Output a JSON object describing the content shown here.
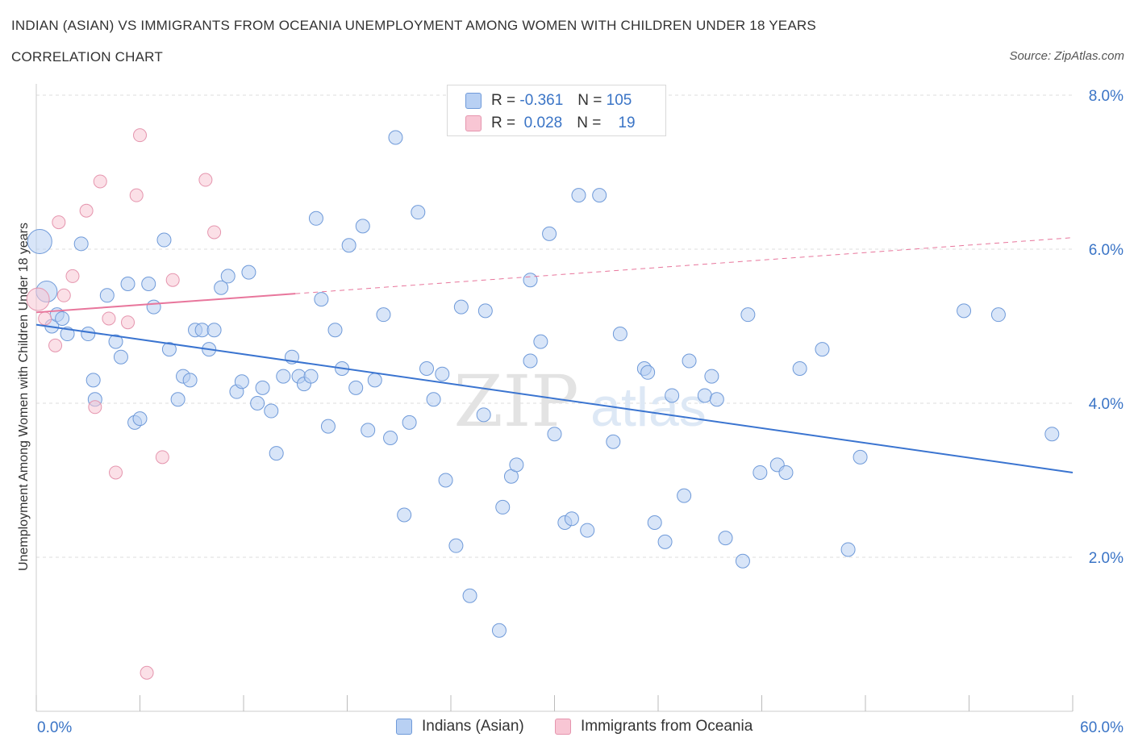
{
  "header": {
    "title": "INDIAN (ASIAN) VS IMMIGRANTS FROM OCEANIA UNEMPLOYMENT AMONG WOMEN WITH CHILDREN UNDER 18 YEARS",
    "subtitle": "CORRELATION CHART",
    "source": "Source: ZipAtlas.com"
  },
  "legend": {
    "row1": {
      "r_label": "R =",
      "r_value": "-0.361",
      "n_label": "N =",
      "n_value": "105"
    },
    "row2": {
      "r_label": "R =",
      "r_value": "0.028",
      "n_label": "N =",
      "n_value": "19"
    }
  },
  "colors": {
    "blue_fill": "#b8d0f3",
    "blue_stroke": "#6f9ad9",
    "blue_line": "#3a74d0",
    "pink_fill": "#f8c6d4",
    "pink_stroke": "#e595ae",
    "pink_line": "#e8769c",
    "axis_text": "#3a74c6",
    "grid": "#dcdcdc"
  },
  "chart_data": {
    "type": "scatter",
    "title": "INDIAN (ASIAN) VS IMMIGRANTS FROM OCEANIA UNEMPLOYMENT AMONG WOMEN WITH CHILDREN UNDER 18 YEARS",
    "subtitle": "CORRELATION CHART",
    "xlabel": "",
    "ylabel": "Unemployment Among Women with Children Under 18 years",
    "xlim": [
      0,
      60
    ],
    "ylim": [
      0,
      8
    ],
    "x_tick_labels": [
      "0.0%",
      "60.0%"
    ],
    "y_ticks": [
      2,
      4,
      6,
      8
    ],
    "y_tick_labels": [
      "2.0%",
      "4.0%",
      "6.0%",
      "8.0%"
    ],
    "grid": true,
    "legend_position": "top-center",
    "watermark": "ZIPatlas",
    "series": [
      {
        "name": "Indians (Asian)",
        "color": "#6f9ad9",
        "r": "-0.361",
        "n": "105",
        "trend": {
          "x": [
            0,
            60
          ],
          "y": [
            5.02,
            3.1
          ]
        },
        "points": [
          [
            0.2,
            6.1
          ],
          [
            0.6,
            5.45
          ],
          [
            0.9,
            5.0
          ],
          [
            1.2,
            5.15
          ],
          [
            1.5,
            5.1
          ],
          [
            1.8,
            4.9
          ],
          [
            2.6,
            6.07
          ],
          [
            3.0,
            4.9
          ],
          [
            3.3,
            4.3
          ],
          [
            3.4,
            4.05
          ],
          [
            4.1,
            5.4
          ],
          [
            4.6,
            4.8
          ],
          [
            4.9,
            4.6
          ],
          [
            5.3,
            5.55
          ],
          [
            5.7,
            3.75
          ],
          [
            6.0,
            3.8
          ],
          [
            6.5,
            5.55
          ],
          [
            6.8,
            5.25
          ],
          [
            7.4,
            6.12
          ],
          [
            7.7,
            4.7
          ],
          [
            8.2,
            4.05
          ],
          [
            8.5,
            4.35
          ],
          [
            8.9,
            4.3
          ],
          [
            9.2,
            4.95
          ],
          [
            9.6,
            4.95
          ],
          [
            10.0,
            4.7
          ],
          [
            10.3,
            4.95
          ],
          [
            10.7,
            5.5
          ],
          [
            11.1,
            5.65
          ],
          [
            11.6,
            4.15
          ],
          [
            11.9,
            4.28
          ],
          [
            12.3,
            5.7
          ],
          [
            12.8,
            4.0
          ],
          [
            13.1,
            4.2
          ],
          [
            13.6,
            3.9
          ],
          [
            13.9,
            3.35
          ],
          [
            14.3,
            4.35
          ],
          [
            14.8,
            4.6
          ],
          [
            15.2,
            4.35
          ],
          [
            15.5,
            4.25
          ],
          [
            15.9,
            4.35
          ],
          [
            16.2,
            6.4
          ],
          [
            16.5,
            5.35
          ],
          [
            16.9,
            3.7
          ],
          [
            17.3,
            4.95
          ],
          [
            17.7,
            4.45
          ],
          [
            18.1,
            6.05
          ],
          [
            18.5,
            4.2
          ],
          [
            18.9,
            6.3
          ],
          [
            19.2,
            3.65
          ],
          [
            19.6,
            4.3
          ],
          [
            20.1,
            5.15
          ],
          [
            20.5,
            3.55
          ],
          [
            20.8,
            7.45
          ],
          [
            21.3,
            2.55
          ],
          [
            21.6,
            3.75
          ],
          [
            22.1,
            6.48
          ],
          [
            22.6,
            4.45
          ],
          [
            23.0,
            4.05
          ],
          [
            23.5,
            4.38
          ],
          [
            23.7,
            3.0
          ],
          [
            24.3,
            2.15
          ],
          [
            24.6,
            5.25
          ],
          [
            25.1,
            1.5
          ],
          [
            25.9,
            3.85
          ],
          [
            26.0,
            5.2
          ],
          [
            26.8,
            1.05
          ],
          [
            27.0,
            2.65
          ],
          [
            27.5,
            3.05
          ],
          [
            27.8,
            3.2
          ],
          [
            28.6,
            4.55
          ],
          [
            28.6,
            5.6
          ],
          [
            29.2,
            4.8
          ],
          [
            29.7,
            6.2
          ],
          [
            30.0,
            3.6
          ],
          [
            30.6,
            2.45
          ],
          [
            31.0,
            2.5
          ],
          [
            31.4,
            6.7
          ],
          [
            31.9,
            2.35
          ],
          [
            32.6,
            6.7
          ],
          [
            33.4,
            3.5
          ],
          [
            33.8,
            4.9
          ],
          [
            35.2,
            4.45
          ],
          [
            35.4,
            4.4
          ],
          [
            35.8,
            2.45
          ],
          [
            36.4,
            2.2
          ],
          [
            36.8,
            4.1
          ],
          [
            37.5,
            2.8
          ],
          [
            37.8,
            4.55
          ],
          [
            38.7,
            4.1
          ],
          [
            39.1,
            4.35
          ],
          [
            39.4,
            4.05
          ],
          [
            39.9,
            2.25
          ],
          [
            40.9,
            1.95
          ],
          [
            41.2,
            5.15
          ],
          [
            41.9,
            3.1
          ],
          [
            42.9,
            3.2
          ],
          [
            43.4,
            3.1
          ],
          [
            44.2,
            4.45
          ],
          [
            45.5,
            4.7
          ],
          [
            47.0,
            2.1
          ],
          [
            47.7,
            3.3
          ],
          [
            53.7,
            5.2
          ],
          [
            55.7,
            5.15
          ],
          [
            58.8,
            3.6
          ]
        ]
      },
      {
        "name": "Immigrants from Oceania",
        "color": "#e595ae",
        "r": "0.028",
        "n": "19",
        "trend": {
          "x": [
            0,
            60
          ],
          "y": [
            5.18,
            6.15
          ]
        },
        "trend_solid_until_x": 15,
        "points": [
          [
            0.1,
            5.35
          ],
          [
            0.5,
            5.1
          ],
          [
            1.1,
            4.75
          ],
          [
            1.3,
            6.35
          ],
          [
            1.6,
            5.4
          ],
          [
            2.1,
            5.65
          ],
          [
            2.9,
            6.5
          ],
          [
            3.4,
            3.95
          ],
          [
            3.7,
            6.88
          ],
          [
            4.2,
            5.1
          ],
          [
            4.6,
            3.1
          ],
          [
            5.3,
            5.05
          ],
          [
            5.8,
            6.7
          ],
          [
            6.0,
            7.48
          ],
          [
            6.4,
            0.5
          ],
          [
            7.3,
            3.3
          ],
          [
            7.9,
            5.6
          ],
          [
            9.8,
            6.9
          ],
          [
            10.3,
            6.22
          ]
        ]
      }
    ]
  },
  "bottom_legend": {
    "items": [
      "Indians (Asian)",
      "Immigrants from Oceania"
    ]
  }
}
